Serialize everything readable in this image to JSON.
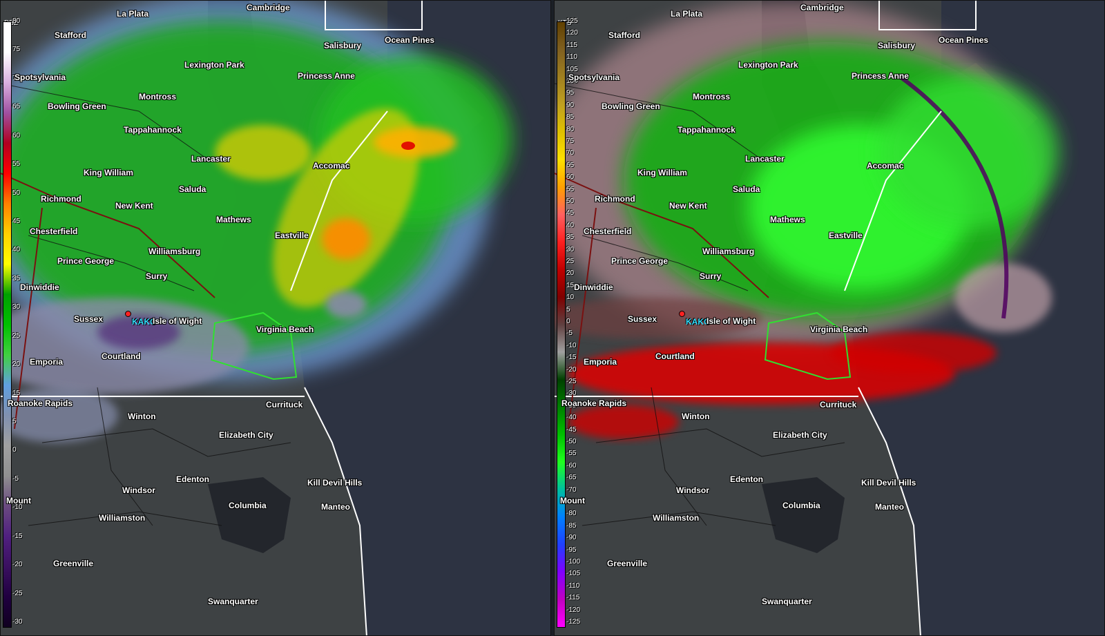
{
  "panels": {
    "reflectivity": {
      "unit": "DBZ",
      "ticks": [
        "80",
        "75",
        "70",
        "65",
        "60",
        "55",
        "50",
        "45",
        "40",
        "35",
        "30",
        "25",
        "20",
        "15",
        "5",
        "0",
        "-5",
        "-10",
        "-15",
        "-20",
        "-25",
        "-30"
      ],
      "gradient": [
        "#ffffff",
        "#ffffff",
        "#d9b0e0",
        "#a050a0",
        "#b00020",
        "#ff0000",
        "#ff8000",
        "#ffd000",
        "#ffff00",
        "#00a000",
        "#00c000",
        "#40d040",
        "#60a0e0",
        "#8090b0",
        "#a0a0a0",
        "#909090",
        "#6a4a80",
        "#502080",
        "#3a1060",
        "#200040",
        "#100020"
      ]
    },
    "velocity": {
      "unit": "KTS",
      "ticks": [
        "125",
        "120",
        "115",
        "110",
        "105",
        "100",
        "95",
        "90",
        "85",
        "80",
        "75",
        "70",
        "65",
        "60",
        "55",
        "50",
        "45",
        "40",
        "35",
        "30",
        "25",
        "20",
        "15",
        "10",
        "5",
        "0",
        "-5",
        "-10",
        "-15",
        "-20",
        "-25",
        "-30",
        "-35",
        "-40",
        "-45",
        "-50",
        "-55",
        "-60",
        "-65",
        "-70",
        "-75",
        "-80",
        "-85",
        "-90",
        "-95",
        "-100",
        "-105",
        "-110",
        "-115",
        "-120",
        "-125"
      ],
      "gradient": [
        "#604000",
        "#806020",
        "#a08020",
        "#c0a020",
        "#e0c000",
        "#ffe000",
        "#ffa000",
        "#ff6060",
        "#ff2020",
        "#c00000",
        "#800000",
        "#604040",
        "#a0a0a0",
        "#004000",
        "#008000",
        "#00c000",
        "#20ff20",
        "#00c0a0",
        "#0080ff",
        "#2040ff",
        "#8000ff",
        "#c000c0",
        "#ff00ff"
      ]
    }
  },
  "station": {
    "name": "KAKO"
  },
  "cities": [
    {
      "name": "La Plata"
    },
    {
      "name": "Cambridge"
    },
    {
      "name": "Stafford"
    },
    {
      "name": "Salisbury"
    },
    {
      "name": "Ocean Pines"
    },
    {
      "name": "Lexington Park"
    },
    {
      "name": "Princess Anne"
    },
    {
      "name": "Spotsylvania"
    },
    {
      "name": "Montross"
    },
    {
      "name": "Bowling Green"
    },
    {
      "name": "Tappahannock"
    },
    {
      "name": "Lancaster"
    },
    {
      "name": "Accomac"
    },
    {
      "name": "King William"
    },
    {
      "name": "Saluda"
    },
    {
      "name": "Richmond"
    },
    {
      "name": "New Kent"
    },
    {
      "name": "Mathews"
    },
    {
      "name": "Chesterfield"
    },
    {
      "name": "Eastville"
    },
    {
      "name": "Williamsburg"
    },
    {
      "name": "Prince George"
    },
    {
      "name": "Surry"
    },
    {
      "name": "Dinwiddie"
    },
    {
      "name": "Sussex"
    },
    {
      "name": "Isle of Wight"
    },
    {
      "name": "Virginia Beach"
    },
    {
      "name": "Courtland"
    },
    {
      "name": "Emporia"
    },
    {
      "name": "Roanoke Rapids"
    },
    {
      "name": "Currituck"
    },
    {
      "name": "Winton"
    },
    {
      "name": "Elizabeth City"
    },
    {
      "name": "Edenton"
    },
    {
      "name": "Kill Devil Hills"
    },
    {
      "name": "Windsor"
    },
    {
      "name": "Mount"
    },
    {
      "name": "Columbia"
    },
    {
      "name": "Manteo"
    },
    {
      "name": "Williamston"
    },
    {
      "name": "Greenville"
    },
    {
      "name": "Swanquarter"
    }
  ]
}
